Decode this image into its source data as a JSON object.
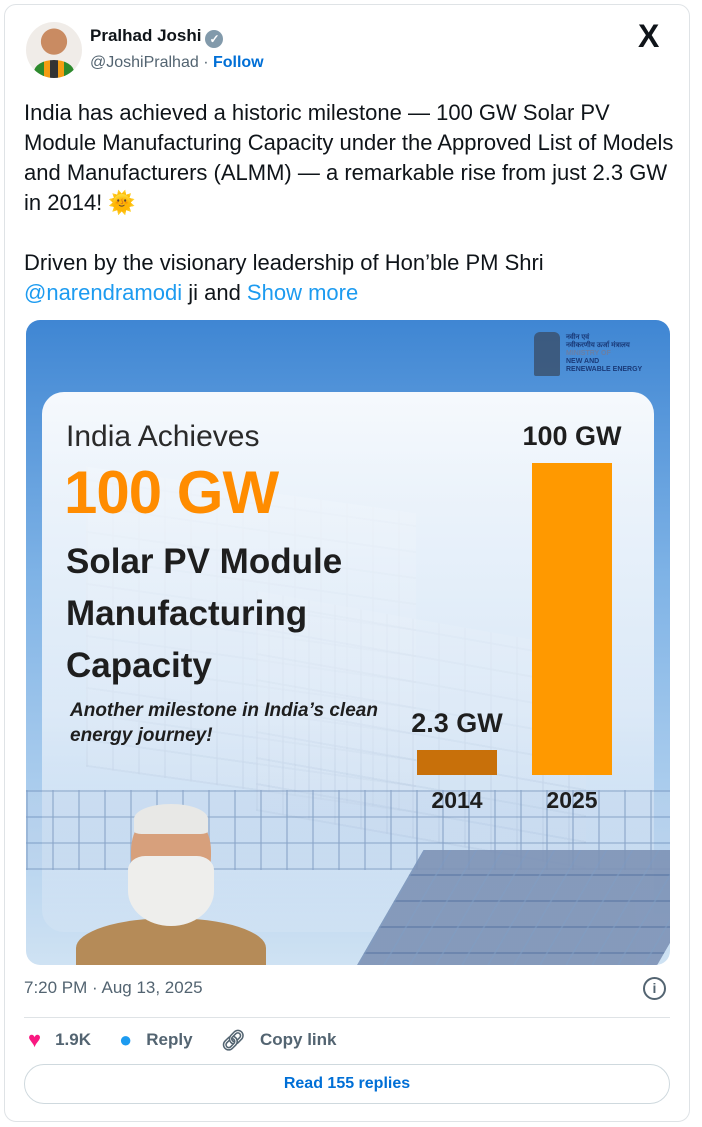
{
  "author": {
    "name": "Pralhad Joshi",
    "handle": "@JoshiPralhad",
    "separator": " · ",
    "follow_label": "Follow",
    "verified_icon": "verified-badge-icon"
  },
  "platform_logo": "X",
  "tweet": {
    "paragraph1": "India has achieved a historic milestone — 100 GW Solar PV Module Manufacturing Capacity under the Approved List of Models and Manufacturers (ALMM) — a remarkable rise from just 2.3 GW in 2014! 🌞",
    "paragraph2_text": "Driven by the visionary leadership of Hon’ble PM Shri ",
    "mention": "@narendramodi",
    "paragraph2_tail": " ji and ",
    "show_more": "Show more"
  },
  "media": {
    "logo_lines": [
      "नवीन एवं",
      "नवीकरणीय ऊर्जा मंत्रालय",
      "MINISTRY OF",
      "NEW AND",
      "RENEWABLE ENERGY"
    ],
    "headline1": "India Achieves",
    "headline2": "100 GW",
    "headline3": "Solar PV Module Manufacturing Capacity",
    "subline": "Another milestone in India’s clean energy journey!",
    "bars": [
      {
        "year": "2014",
        "label": "2.3 GW",
        "value": 2.3,
        "color": "#c8700a"
      },
      {
        "year": "2025",
        "label": "100 GW",
        "value": 100,
        "color": "#ff9900"
      }
    ]
  },
  "timestamp": "7:20 PM · Aug 13, 2025",
  "actions": {
    "likes": "1.9K",
    "reply": "Reply",
    "copy_link": "Copy link"
  },
  "read_replies": "Read 155 replies",
  "colors": {
    "link": "#1d9bf0",
    "follow": "#006fd6",
    "like": "#f91880",
    "accent_orange": "#ff8c00"
  }
}
